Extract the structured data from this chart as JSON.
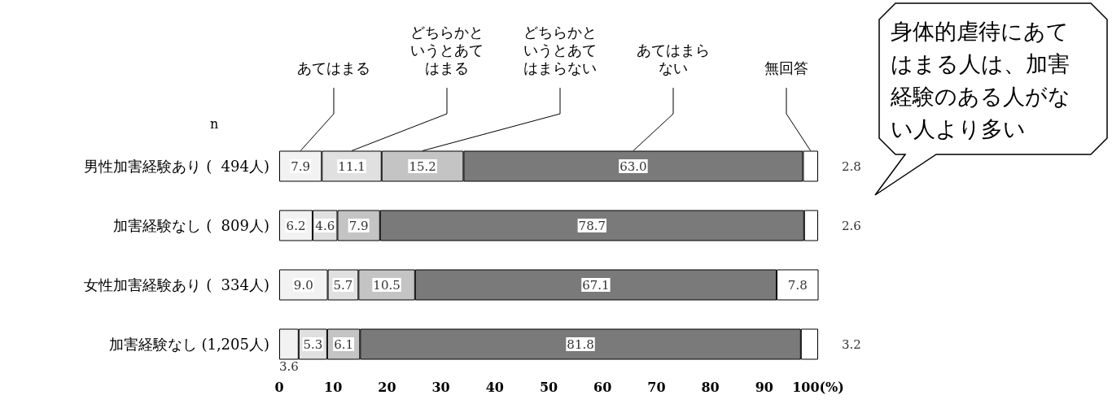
{
  "chart_data": {
    "type": "bar",
    "orientation": "horizontal",
    "stacked": true,
    "categories": [
      "男性加害経験あり (  494人)",
      "加害経験なし (  809人)",
      "女性加害経験あり (  334人)",
      "加害経験なし (1,205人)"
    ],
    "series": [
      {
        "name": "あてはまる",
        "color": "#f2f2f2",
        "values": [
          7.9,
          6.2,
          9.0,
          3.6
        ],
        "value_labels": [
          "7.9",
          "6.2",
          "9.0",
          "3.6"
        ]
      },
      {
        "name": "どちらかというとあてはまる",
        "color": "#e0e0e0",
        "values": [
          11.1,
          4.6,
          5.7,
          5.3
        ],
        "value_labels": [
          "11.1",
          "4.6",
          "5.7",
          "5.3"
        ]
      },
      {
        "name": "どちらかというとあてはまらない",
        "color": "#c4c4c4",
        "values": [
          15.2,
          7.9,
          10.5,
          6.1
        ],
        "value_labels": [
          "15.2",
          "7.9",
          "10.5",
          "6.1"
        ]
      },
      {
        "name": "あてはまらない",
        "color": "#7a7a7a",
        "values": [
          63.0,
          78.7,
          67.1,
          81.8
        ],
        "value_labels": [
          "63.0",
          "78.7",
          "67.1",
          "81.8"
        ]
      },
      {
        "name": "無回答",
        "color": "#ffffff",
        "values": [
          2.8,
          2.6,
          7.8,
          3.2
        ],
        "value_labels": [
          "2.8",
          "2.6",
          "7.8",
          "3.2"
        ]
      }
    ],
    "xlim": [
      0,
      100
    ],
    "xticks": [
      0,
      10,
      20,
      30,
      40,
      50,
      60,
      70,
      80,
      90,
      {
        "value": 100,
        "label": "100(%)"
      }
    ],
    "grid": false,
    "legend": "top",
    "annotations": [
      "n",
      "身体的虐待にあてはまる人は、加害経験のある人がない人より多い"
    ]
  }
}
